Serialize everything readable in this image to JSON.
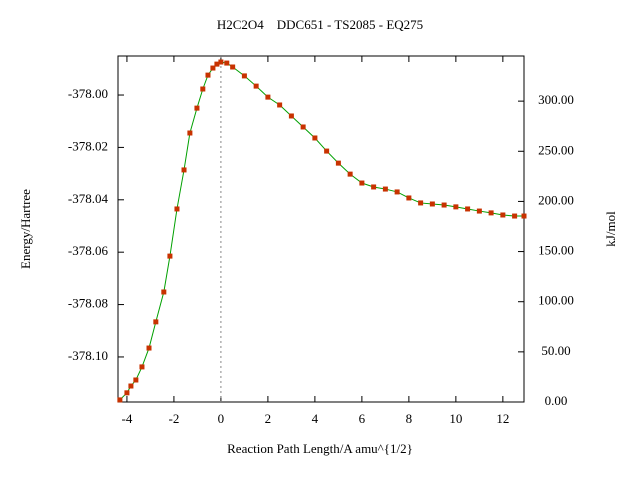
{
  "chart_data": {
    "type": "line",
    "title": "H2C2O4    DDC651 - TS2085 - EQ275",
    "xlabel": "Reaction Path Length/A amu^{1/2}",
    "ylabel": "Energy/Hartree",
    "y2label": "kJ/mol",
    "reference_x": 0,
    "xlim": [
      -4.38,
      12.9
    ],
    "xticks": [
      -4,
      -2,
      0,
      2,
      4,
      6,
      8,
      10,
      12
    ],
    "ylim": [
      -378.1172,
      -377.9851
    ],
    "yticks": [
      {
        "value": -378.1,
        "label": "-378.10"
      },
      {
        "value": -378.08,
        "label": "-378.08"
      },
      {
        "value": -378.06,
        "label": "-378.06"
      },
      {
        "value": -378.04,
        "label": "-378.04"
      },
      {
        "value": -378.02,
        "label": "-378.02"
      },
      {
        "value": -378.0,
        "label": "-378.00"
      }
    ],
    "y2lim": [
      0,
      345
    ],
    "y2ticks": [
      {
        "value": 0,
        "label": "0.00"
      },
      {
        "value": 50,
        "label": "50.00"
      },
      {
        "value": 100,
        "label": "100.00"
      },
      {
        "value": 150,
        "label": "150.00"
      },
      {
        "value": 200,
        "label": "200.00"
      },
      {
        "value": 250,
        "label": "250.00"
      },
      {
        "value": 300,
        "label": "300.00"
      }
    ],
    "x": [
      -4.3,
      -4.0,
      -3.83,
      -3.62,
      -3.36,
      -3.06,
      -2.77,
      -2.43,
      -2.17,
      -1.87,
      -1.57,
      -1.32,
      -1.02,
      -0.77,
      -0.55,
      -0.34,
      -0.17,
      0,
      0.25,
      0.5,
      1.0,
      1.5,
      2.0,
      2.5,
      3.0,
      3.5,
      4.0,
      4.5,
      5.0,
      5.5,
      6.0,
      6.5,
      7.0,
      7.5,
      8.0,
      8.5,
      9.0,
      9.5,
      10.0,
      10.5,
      11.0,
      11.5,
      12.0,
      12.5,
      12.9
    ],
    "series": [
      {
        "color": "#00a000",
        "marker_color": "#c83200",
        "values": [
          -378.1164,
          -378.1137,
          -378.1111,
          -378.1088,
          -378.1038,
          -378.0966,
          -378.0866,
          -378.0752,
          -378.0615,
          -378.0435,
          -378.0286,
          -378.0145,
          -378.005,
          -377.9977,
          -377.9924,
          -377.9897,
          -377.9882,
          -377.9874,
          -377.9878,
          -377.9893,
          -377.9927,
          -377.9966,
          -378.0008,
          -378.0038,
          -378.008,
          -378.0122,
          -378.0164,
          -378.0214,
          -378.026,
          -378.0302,
          -378.0336,
          -378.0351,
          -378.0359,
          -378.037,
          -378.0393,
          -378.0412,
          -378.0416,
          -378.042,
          -378.0427,
          -378.0435,
          -378.0443,
          -378.045,
          -378.0458,
          -378.0462,
          -378.0462
        ]
      }
    ]
  }
}
